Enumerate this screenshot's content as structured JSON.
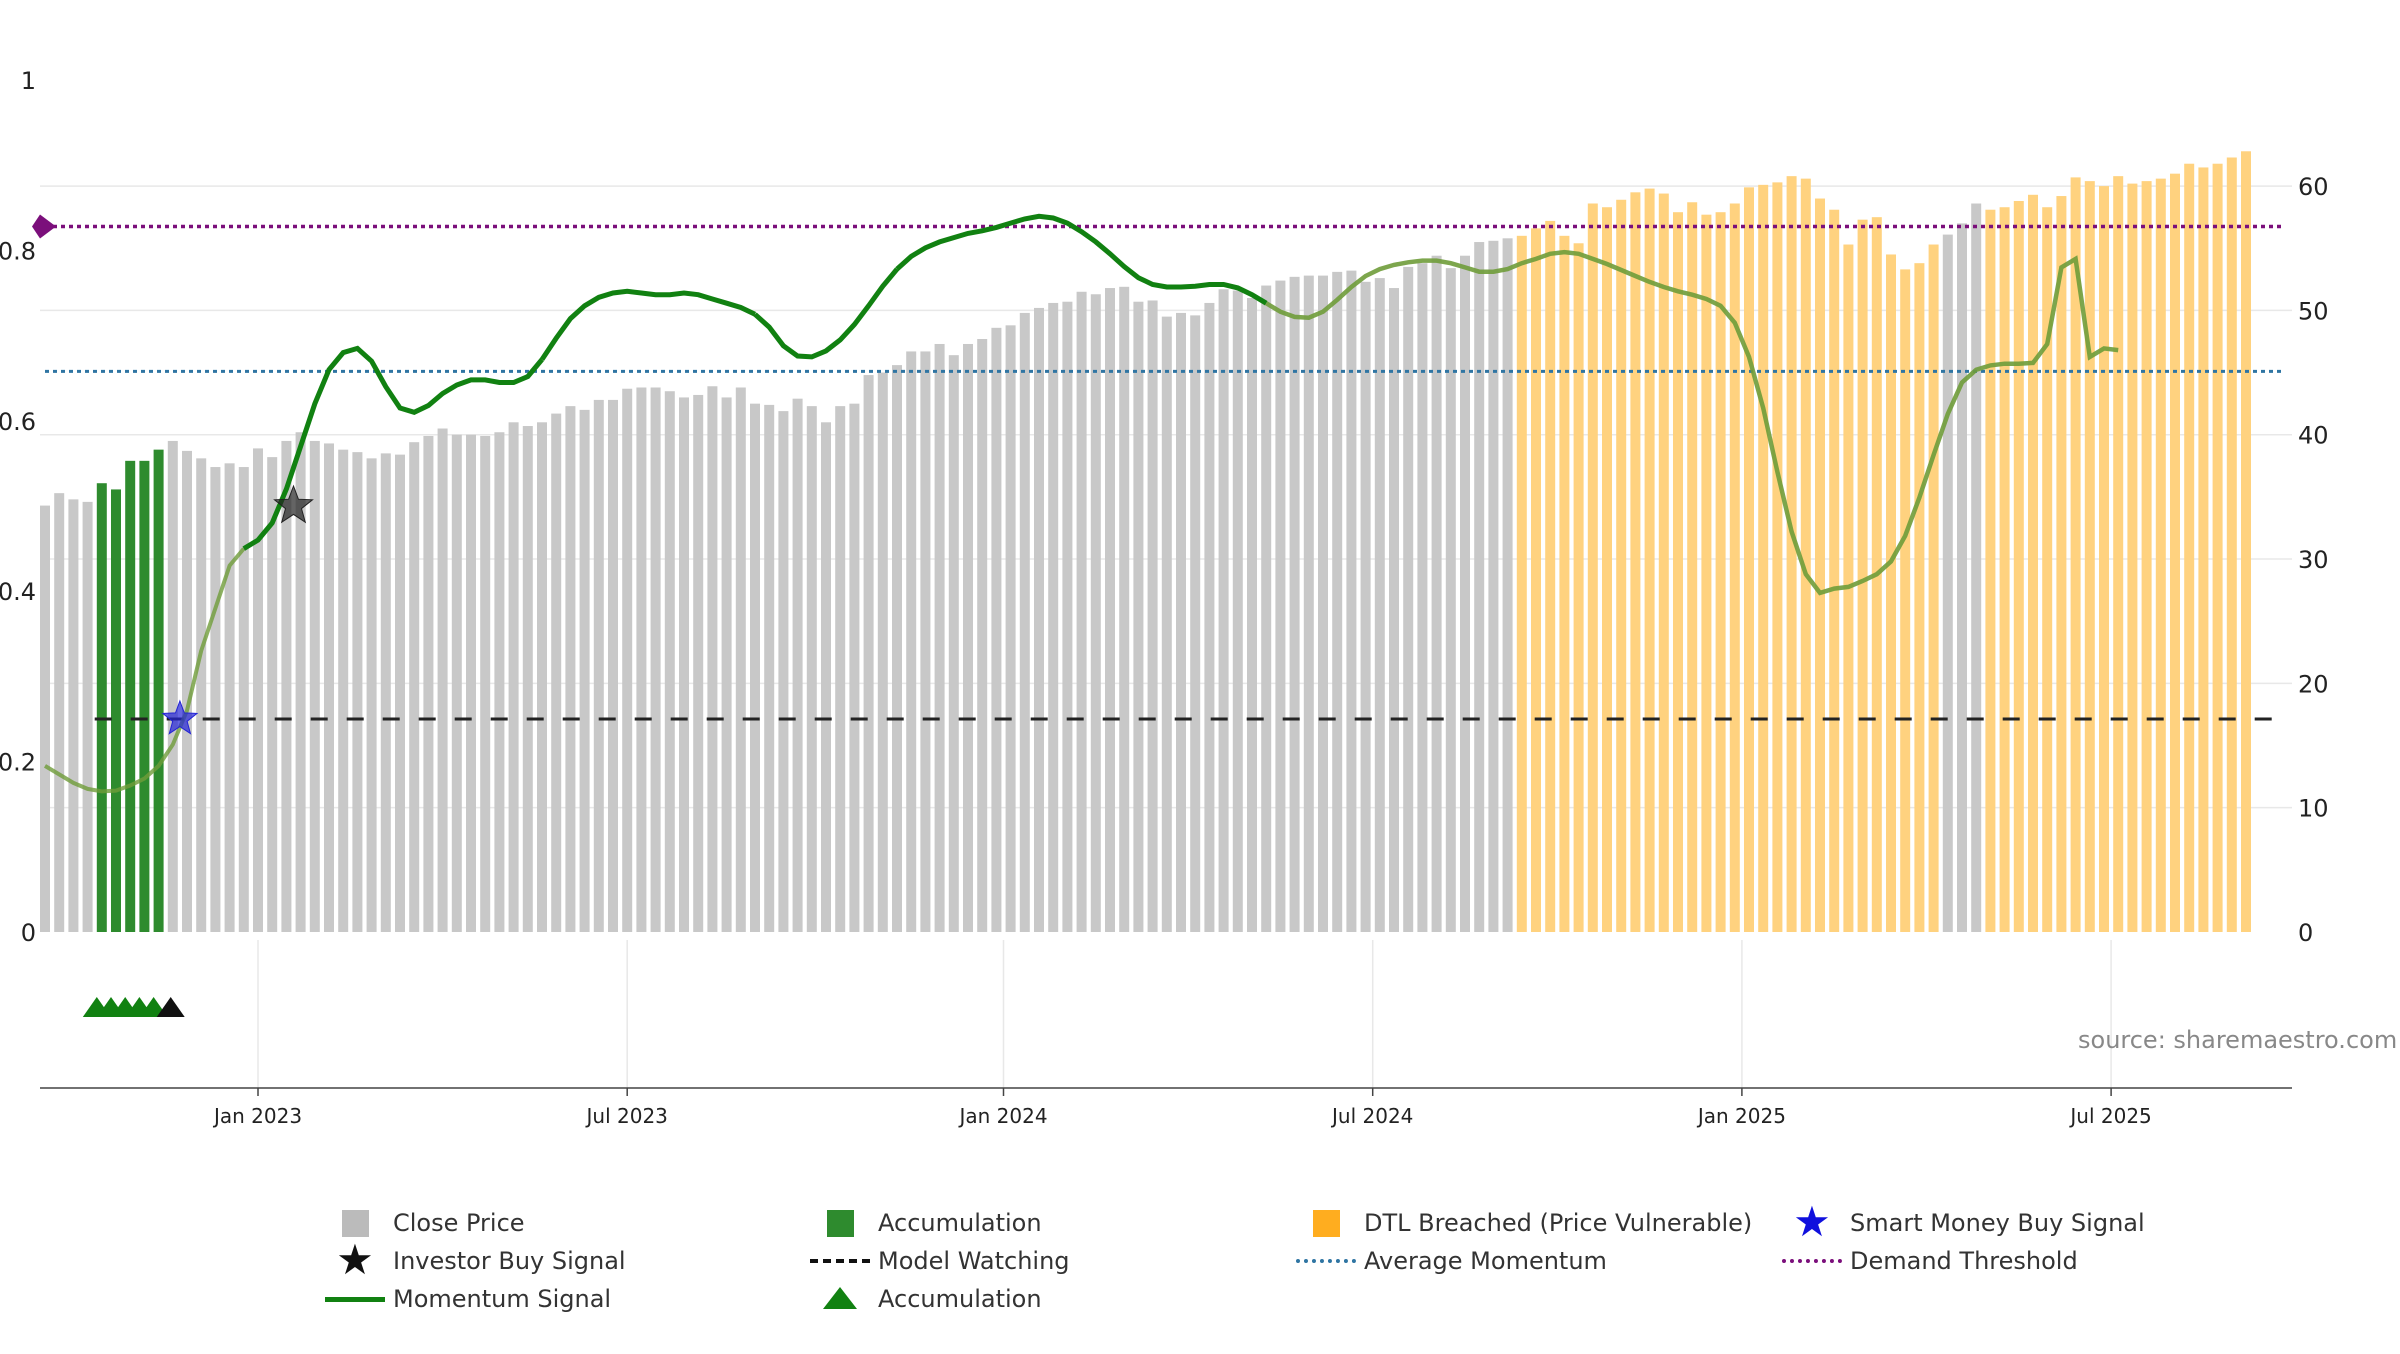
{
  "source_label": "source: sharemaestro.com",
  "colors": {
    "close_price": "#c8c8c8",
    "accumulation": "#2e8b2e",
    "dtl_breached": "#ffd27f",
    "momentum": "#118111",
    "momentum_faded": "#6f9c3a",
    "average_momentum": "#2f75a3",
    "demand_threshold": "#7b0f7b",
    "model_watching": "#222222",
    "smart_money": "#2323d6",
    "investor_buy": "#222222",
    "grid": "#e8e8e8"
  },
  "legend": [
    {
      "label": "Close Price",
      "symbol": "square",
      "color": "#bbbbbb"
    },
    {
      "label": "Accumulation",
      "symbol": "square",
      "color": "#2e8b2e"
    },
    {
      "label": "DTL Breached (Price Vulnerable)",
      "symbol": "square",
      "color": "#ffad1f"
    },
    {
      "label": "Smart Money Buy Signal",
      "symbol": "star",
      "color": "#1010dd"
    },
    {
      "label": "Investor Buy Signal",
      "symbol": "star",
      "color": "#111111"
    },
    {
      "label": "Model Watching",
      "symbol": "dash",
      "color": "#111111"
    },
    {
      "label": "Average Momentum",
      "symbol": "dot",
      "color": "#2f75a3"
    },
    {
      "label": "Demand Threshold",
      "symbol": "dot",
      "color": "#7b0f7b"
    },
    {
      "label": "Momentum Signal",
      "symbol": "line",
      "color": "#118111"
    },
    {
      "label": "Accumulation",
      "symbol": "triangle",
      "color": "#118111"
    }
  ],
  "chart_data": {
    "type": "bar",
    "title": "",
    "xlabel": "",
    "ylabel": "",
    "x_ticks": [
      "Jan 2023",
      "Jul 2023",
      "Jan 2024",
      "Jul 2024",
      "Jan 2025",
      "Jul 2025"
    ],
    "x_tick_weeks": [
      15,
      41,
      67.5,
      93.5,
      119.5,
      145.5
    ],
    "left_axis": {
      "ticks": [
        "0",
        "0.2",
        "0.4",
        "0.6",
        "0.8",
        "1"
      ],
      "range": [
        0,
        1
      ]
    },
    "right_axis": {
      "ticks": [
        "0",
        "10",
        "20",
        "30",
        "40",
        "50",
        "60"
      ],
      "range": [
        0,
        62.7
      ]
    },
    "x_range_weeks": [
      0,
      158
    ],
    "series": [
      {
        "name": "Close Price",
        "axis": "right",
        "weekly_values": [
          34.3,
          35.3,
          34.8,
          34.6,
          36.1,
          35.6,
          37.9,
          37.9,
          38.8,
          39.5,
          38.7,
          38.1,
          37.4,
          37.7,
          37.4,
          38.9,
          38.2,
          39.5,
          40.2,
          39.5,
          39.3,
          38.8,
          38.6,
          38.1,
          38.5,
          38.4,
          39.4,
          39.9,
          40.5,
          40.0,
          40.0,
          39.9,
          40.2,
          41.0,
          40.7,
          41.0,
          41.7,
          42.3,
          42.0,
          42.8,
          42.8,
          43.7,
          43.8,
          43.8,
          43.5,
          43.0,
          43.2,
          43.9,
          43.0,
          43.8,
          42.5,
          42.4,
          41.9,
          42.9,
          42.3,
          41.0,
          42.3,
          42.5,
          44.8,
          45.0,
          45.6,
          46.7,
          46.7,
          47.3,
          46.4,
          47.3,
          47.7,
          48.6,
          48.8,
          49.8,
          50.2,
          50.6,
          50.7,
          51.5,
          51.3,
          51.8,
          51.9,
          50.7,
          50.8,
          49.5,
          49.8,
          49.6,
          50.6,
          51.7,
          51.6,
          51.0,
          52.0,
          52.4,
          52.7,
          52.8,
          52.8,
          53.1,
          53.2,
          52.3,
          52.6,
          51.8,
          53.5,
          53.8,
          54.4,
          53.4,
          54.4,
          55.5,
          55.6,
          55.8,
          56.0,
          56.6,
          57.2,
          56.0,
          55.4,
          58.6,
          58.3,
          58.9,
          59.5,
          59.8,
          59.4,
          57.9,
          58.7,
          57.7,
          57.9,
          58.6,
          59.9,
          60.1,
          60.3,
          60.8,
          60.6,
          59.0,
          58.1,
          55.3,
          57.3,
          57.5,
          54.5,
          53.3,
          53.8,
          55.3,
          56.1,
          57.0,
          58.6,
          58.1,
          58.3,
          58.8,
          59.3,
          58.3,
          59.2,
          60.7,
          60.4,
          60.0,
          60.8,
          60.2,
          60.4,
          60.6,
          61.0,
          61.8,
          61.5,
          61.8,
          62.3,
          62.8
        ]
      },
      {
        "name": "Momentum Signal",
        "axis": "left",
        "points": [
          [
            0,
            0.195
          ],
          [
            1,
            0.185
          ],
          [
            2,
            0.175
          ],
          [
            3,
            0.168
          ],
          [
            4,
            0.165
          ],
          [
            5,
            0.166
          ],
          [
            6,
            0.172
          ],
          [
            7,
            0.18
          ],
          [
            8,
            0.195
          ],
          [
            9,
            0.22
          ],
          [
            10,
            0.26
          ],
          [
            11,
            0.33
          ],
          [
            12,
            0.38
          ],
          [
            13,
            0.43
          ],
          [
            14,
            0.45
          ],
          [
            15,
            0.46
          ],
          [
            16,
            0.48
          ],
          [
            17,
            0.52
          ],
          [
            18,
            0.57
          ],
          [
            19,
            0.62
          ],
          [
            20,
            0.66
          ],
          [
            21,
            0.68
          ],
          [
            22,
            0.685
          ],
          [
            23,
            0.67
          ],
          [
            24,
            0.64
          ],
          [
            25,
            0.615
          ],
          [
            26,
            0.61
          ],
          [
            27,
            0.618
          ],
          [
            28,
            0.632
          ],
          [
            29,
            0.642
          ],
          [
            30,
            0.648
          ],
          [
            31,
            0.648
          ],
          [
            32,
            0.645
          ],
          [
            33,
            0.645
          ],
          [
            34,
            0.652
          ],
          [
            35,
            0.672
          ],
          [
            36,
            0.697
          ],
          [
            37,
            0.72
          ],
          [
            38,
            0.735
          ],
          [
            39,
            0.745
          ],
          [
            40,
            0.75
          ],
          [
            41,
            0.752
          ],
          [
            42,
            0.75
          ],
          [
            43,
            0.748
          ],
          [
            44,
            0.748
          ],
          [
            45,
            0.75
          ],
          [
            46,
            0.748
          ],
          [
            47,
            0.743
          ],
          [
            48,
            0.738
          ],
          [
            49,
            0.733
          ],
          [
            50,
            0.725
          ],
          [
            51,
            0.71
          ],
          [
            52,
            0.688
          ],
          [
            53,
            0.676
          ],
          [
            54,
            0.675
          ],
          [
            55,
            0.682
          ],
          [
            56,
            0.695
          ],
          [
            57,
            0.713
          ],
          [
            58,
            0.735
          ],
          [
            59,
            0.758
          ],
          [
            60,
            0.778
          ],
          [
            61,
            0.793
          ],
          [
            62,
            0.803
          ],
          [
            63,
            0.81
          ],
          [
            64,
            0.815
          ],
          [
            65,
            0.82
          ],
          [
            66,
            0.823
          ],
          [
            67,
            0.827
          ],
          [
            68,
            0.832
          ],
          [
            69,
            0.837
          ],
          [
            70,
            0.84
          ],
          [
            71,
            0.838
          ],
          [
            72,
            0.832
          ],
          [
            73,
            0.822
          ],
          [
            74,
            0.81
          ],
          [
            75,
            0.796
          ],
          [
            76,
            0.781
          ],
          [
            77,
            0.768
          ],
          [
            78,
            0.76
          ],
          [
            79,
            0.757
          ],
          [
            80,
            0.757
          ],
          [
            81,
            0.758
          ],
          [
            82,
            0.76
          ],
          [
            83,
            0.76
          ],
          [
            84,
            0.756
          ],
          [
            85,
            0.748
          ],
          [
            86,
            0.738
          ],
          [
            87,
            0.728
          ],
          [
            88,
            0.722
          ],
          [
            89,
            0.721
          ],
          [
            90,
            0.728
          ],
          [
            91,
            0.742
          ],
          [
            92,
            0.757
          ],
          [
            93,
            0.77
          ],
          [
            94,
            0.778
          ],
          [
            95,
            0.783
          ],
          [
            96,
            0.786
          ],
          [
            97,
            0.788
          ],
          [
            98,
            0.788
          ],
          [
            99,
            0.785
          ],
          [
            100,
            0.78
          ],
          [
            101,
            0.775
          ],
          [
            102,
            0.775
          ],
          [
            103,
            0.778
          ],
          [
            104,
            0.785
          ],
          [
            105,
            0.79
          ],
          [
            106,
            0.796
          ],
          [
            107,
            0.798
          ],
          [
            108,
            0.796
          ],
          [
            109,
            0.79
          ],
          [
            110,
            0.784
          ],
          [
            111,
            0.777
          ],
          [
            112,
            0.77
          ],
          [
            113,
            0.763
          ],
          [
            114,
            0.757
          ],
          [
            115,
            0.752
          ],
          [
            116,
            0.748
          ],
          [
            117,
            0.743
          ],
          [
            118,
            0.735
          ],
          [
            119,
            0.715
          ],
          [
            120,
            0.675
          ],
          [
            121,
            0.615
          ],
          [
            122,
            0.54
          ],
          [
            123,
            0.47
          ],
          [
            124,
            0.42
          ],
          [
            125,
            0.398
          ],
          [
            126,
            0.403
          ],
          [
            127,
            0.405
          ],
          [
            128,
            0.412
          ],
          [
            129,
            0.42
          ],
          [
            130,
            0.435
          ],
          [
            131,
            0.465
          ],
          [
            132,
            0.51
          ],
          [
            133,
            0.56
          ],
          [
            134,
            0.608
          ],
          [
            135,
            0.645
          ],
          [
            136,
            0.66
          ],
          [
            137,
            0.665
          ],
          [
            138,
            0.667
          ],
          [
            139,
            0.667
          ],
          [
            140,
            0.668
          ],
          [
            141,
            0.69
          ],
          [
            142,
            0.78
          ],
          [
            143,
            0.79
          ],
          [
            144,
            0.675
          ],
          [
            145,
            0.685
          ],
          [
            146,
            0.683
          ]
        ]
      },
      {
        "name": "Average Momentum",
        "axis": "left",
        "value": 0.658
      },
      {
        "name": "Demand Threshold",
        "axis": "left",
        "value": 0.828
      },
      {
        "name": "Model Watching",
        "axis": "left",
        "value": 0.25,
        "x_start": 3.5,
        "x_end": 157.5
      }
    ],
    "accumulation_weeks": [
      4,
      5,
      6,
      7,
      8
    ],
    "dtl_breached_weeks": [
      104,
      105,
      106,
      107,
      108,
      109,
      110,
      111,
      112,
      113,
      114,
      115,
      116,
      117,
      118,
      119,
      120,
      121,
      122,
      123,
      124,
      125,
      126,
      127,
      128,
      129,
      130,
      131,
      132,
      133,
      134,
      135,
      136,
      137,
      138,
      139,
      140,
      141,
      142,
      143,
      144,
      145,
      146,
      147,
      148,
      149,
      150,
      151,
      152,
      153,
      154,
      155,
      156,
      157,
      158
    ],
    "gray_override_weeks": [
      134,
      135,
      136
    ],
    "smart_money_buy_signals": [
      {
        "week": 9.5,
        "value": 0.25
      }
    ],
    "investor_buy_signals": [
      {
        "week": 17.5,
        "value": 0.5
      }
    ],
    "accumulation_markers": {
      "green_weeks": [
        4,
        5,
        6,
        7,
        8
      ],
      "black_weeks": [
        8.5
      ]
    },
    "demand_marker": {
      "week": 0,
      "value": 0.828
    }
  }
}
